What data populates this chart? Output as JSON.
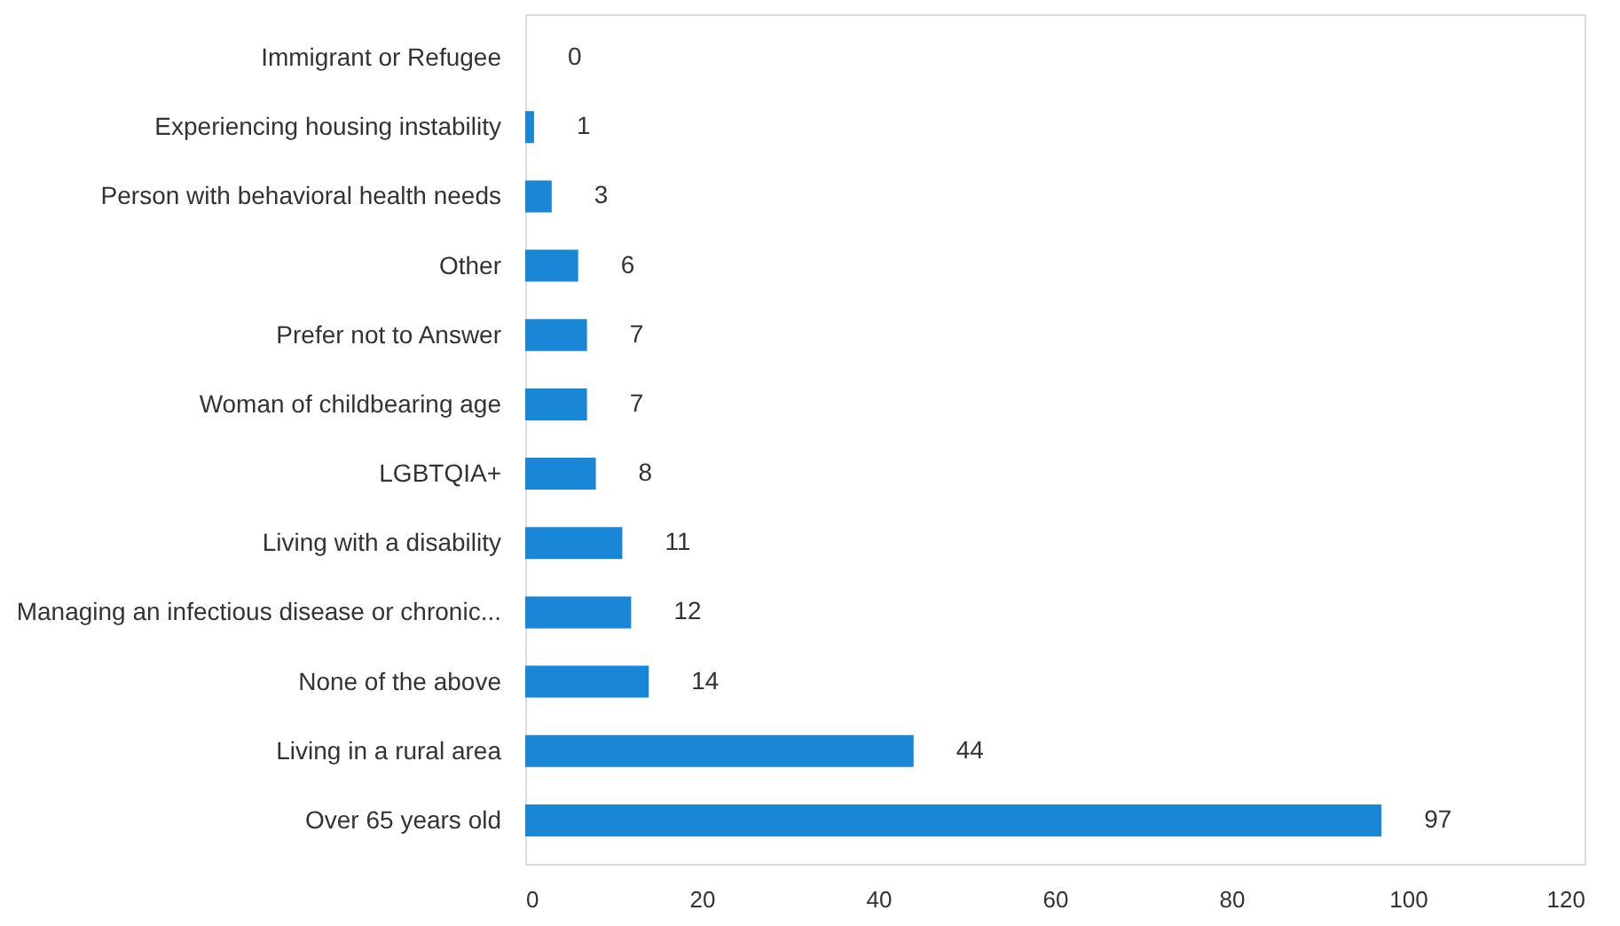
{
  "chart_data": {
    "type": "bar",
    "orientation": "horizontal",
    "categories": [
      "Immigrant or Refugee",
      "Experiencing housing instability",
      "Person with behavioral health needs",
      "Other",
      "Prefer not to Answer",
      "Woman of childbearing age",
      "LGBTQIA+",
      "Living with a disability",
      "Managing an infectious disease or chronic...",
      "None of the above",
      "Living in a rural area",
      "Over 65 years old"
    ],
    "values": [
      0,
      1,
      3,
      6,
      7,
      7,
      8,
      11,
      12,
      14,
      44,
      97
    ],
    "color": "#1a86d6",
    "xlim": [
      0,
      120
    ],
    "xticks": [
      0,
      20,
      40,
      60,
      80,
      100,
      120
    ],
    "data_labels": true,
    "grid": false
  }
}
